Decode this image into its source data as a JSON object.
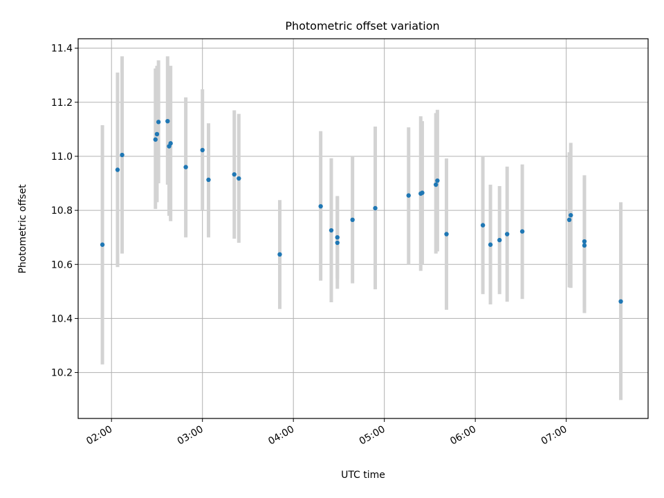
{
  "chart_data": {
    "type": "scatter",
    "title": "Photometric offset variation",
    "xlabel": "UTC time",
    "ylabel": "Photometric offset",
    "xlim": [
      "01:38",
      "07:54"
    ],
    "ylim": [
      10.03,
      11.435
    ],
    "x_ticks": [
      "02:00",
      "03:00",
      "04:00",
      "05:00",
      "06:00",
      "07:00"
    ],
    "y_ticks": [
      "10.2",
      "10.4",
      "10.6",
      "10.8",
      "11.0",
      "11.2",
      "11.4"
    ],
    "y_tick_values": [
      10.2,
      10.4,
      10.6,
      10.8,
      11.0,
      11.2,
      11.4
    ],
    "grid": true,
    "colors": {
      "point": "#1f77b4",
      "errorbar": "#d3d3d3",
      "grid": "#b0b0b0"
    },
    "points": [
      {
        "x": "01:54",
        "y": 10.673,
        "yerr_low": 10.23,
        "yerr_high": 11.115
      },
      {
        "x": "02:04",
        "y": 10.95,
        "yerr_low": 10.59,
        "yerr_high": 11.31
      },
      {
        "x": "02:07",
        "y": 11.005,
        "yerr_low": 10.64,
        "yerr_high": 11.37
      },
      {
        "x": "02:29",
        "y": 11.062,
        "yerr_low": 10.805,
        "yerr_high": 11.325
      },
      {
        "x": "02:30",
        "y": 11.082,
        "yerr_low": 10.83,
        "yerr_high": 11.335
      },
      {
        "x": "02:31",
        "y": 11.127,
        "yerr_low": 10.9,
        "yerr_high": 11.355
      },
      {
        "x": "02:37",
        "y": 11.13,
        "yerr_low": 10.895,
        "yerr_high": 11.37
      },
      {
        "x": "02:38",
        "y": 11.037,
        "yerr_low": 10.78,
        "yerr_high": 11.295
      },
      {
        "x": "02:39",
        "y": 11.048,
        "yerr_low": 10.76,
        "yerr_high": 11.335
      },
      {
        "x": "02:49",
        "y": 10.96,
        "yerr_low": 10.7,
        "yerr_high": 11.218
      },
      {
        "x": "03:00",
        "y": 11.023,
        "yerr_low": 10.8,
        "yerr_high": 11.248
      },
      {
        "x": "03:04",
        "y": 10.913,
        "yerr_low": 10.7,
        "yerr_high": 11.122
      },
      {
        "x": "03:21",
        "y": 10.933,
        "yerr_low": 10.695,
        "yerr_high": 11.17
      },
      {
        "x": "03:24",
        "y": 10.918,
        "yerr_low": 10.68,
        "yerr_high": 11.157
      },
      {
        "x": "03:51",
        "y": 10.637,
        "yerr_low": 10.435,
        "yerr_high": 10.838
      },
      {
        "x": "04:18",
        "y": 10.815,
        "yerr_low": 10.54,
        "yerr_high": 11.093
      },
      {
        "x": "04:25",
        "y": 10.726,
        "yerr_low": 10.46,
        "yerr_high": 10.993
      },
      {
        "x": "04:29",
        "y": 10.7,
        "yerr_low": 10.548,
        "yerr_high": 10.853
      },
      {
        "x": "04:29",
        "y": 10.68,
        "yerr_low": 10.51,
        "yerr_high": 10.85
      },
      {
        "x": "04:39",
        "y": 10.765,
        "yerr_low": 10.53,
        "yerr_high": 11.0
      },
      {
        "x": "04:54",
        "y": 10.808,
        "yerr_low": 10.508,
        "yerr_high": 11.11
      },
      {
        "x": "05:16",
        "y": 10.855,
        "yerr_low": 10.6,
        "yerr_high": 11.107
      },
      {
        "x": "05:24",
        "y": 10.862,
        "yerr_low": 10.576,
        "yerr_high": 11.148
      },
      {
        "x": "05:25",
        "y": 10.865,
        "yerr_low": 10.6,
        "yerr_high": 11.13
      },
      {
        "x": "05:34",
        "y": 10.895,
        "yerr_low": 10.64,
        "yerr_high": 11.16
      },
      {
        "x": "05:35",
        "y": 10.91,
        "yerr_low": 10.648,
        "yerr_high": 11.172
      },
      {
        "x": "05:41",
        "y": 10.712,
        "yerr_low": 10.432,
        "yerr_high": 10.992
      },
      {
        "x": "06:05",
        "y": 10.745,
        "yerr_low": 10.49,
        "yerr_high": 11.0
      },
      {
        "x": "06:10",
        "y": 10.673,
        "yerr_low": 10.452,
        "yerr_high": 10.895
      },
      {
        "x": "06:16",
        "y": 10.69,
        "yerr_low": 10.49,
        "yerr_high": 10.89
      },
      {
        "x": "06:21",
        "y": 10.712,
        "yerr_low": 10.462,
        "yerr_high": 10.962
      },
      {
        "x": "06:31",
        "y": 10.722,
        "yerr_low": 10.472,
        "yerr_high": 10.97
      },
      {
        "x": "07:02",
        "y": 10.765,
        "yerr_low": 10.515,
        "yerr_high": 11.015
      },
      {
        "x": "07:03",
        "y": 10.782,
        "yerr_low": 10.513,
        "yerr_high": 11.05
      },
      {
        "x": "07:12",
        "y": 10.685,
        "yerr_low": 10.44,
        "yerr_high": 10.93
      },
      {
        "x": "07:12",
        "y": 10.67,
        "yerr_low": 10.42,
        "yerr_high": 10.92
      },
      {
        "x": "07:36",
        "y": 10.463,
        "yerr_low": 10.098,
        "yerr_high": 10.83
      }
    ]
  }
}
